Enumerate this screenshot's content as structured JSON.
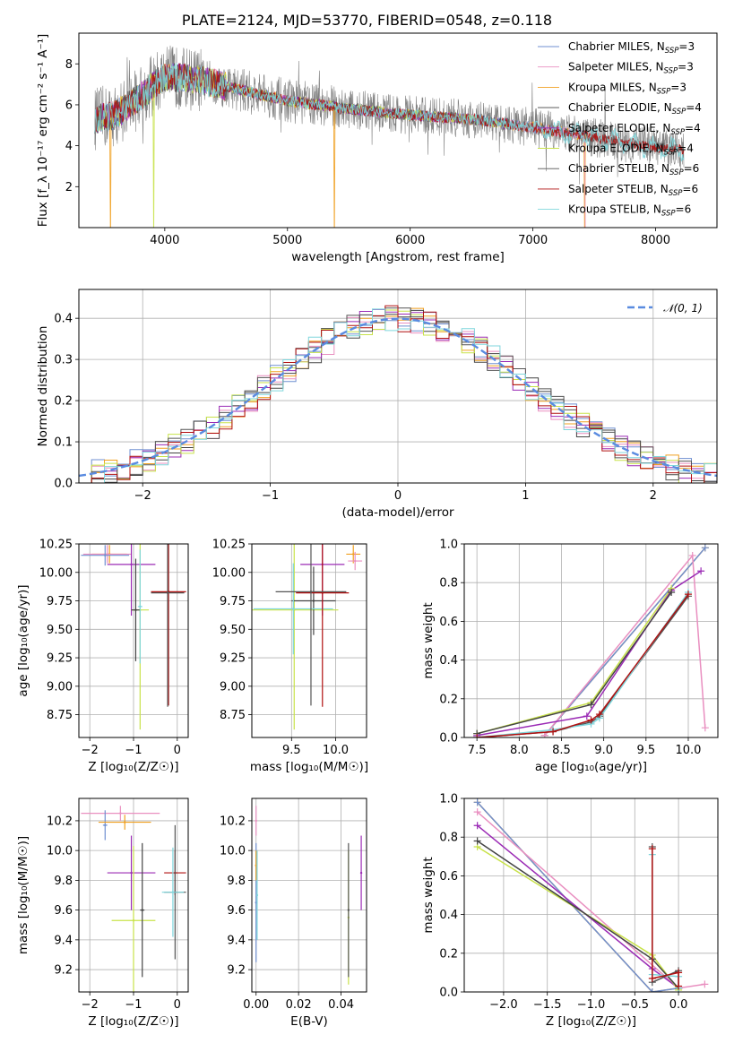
{
  "figure": {
    "title": "PLATE=2124, MJD=53770, FIBERID=0548, z=0.118"
  },
  "series_colors": {
    "Chabrier MILES": "#6f8fd0",
    "Salpeter MILES": "#e98fc0",
    "Kroupa MILES": "#f0a020",
    "Chabrier ELODIE": "#444444",
    "Salpeter ELODIE": "#9b2bb5",
    "Kroupa ELODIE": "#c8e24a",
    "Chabrier STELIB": "#555555",
    "Salpeter STELIB": "#b01010",
    "Kroupa STELIB": "#7fd6dc"
  },
  "chart_data": [
    {
      "id": "spectrum",
      "type": "line",
      "xlabel": "wavelength [Angstrom, rest frame]",
      "ylabel": "Flux [f_λ 10⁻¹⁷ erg cm⁻² s⁻¹ A⁻¹]",
      "xlim": [
        3300,
        8500
      ],
      "ylim": [
        0,
        9.5
      ],
      "xticks": [
        "4000",
        "5000",
        "6000",
        "7000",
        "8000"
      ],
      "yticks": [
        "2",
        "4",
        "6",
        "8"
      ],
      "legend_position": "top-right",
      "legend": [
        {
          "name": "Chabrier MILES",
          "sub": "SSP",
          "n": "3"
        },
        {
          "name": "Salpeter MILES",
          "sub": "SSP",
          "n": "3"
        },
        {
          "name": "Kroupa MILES",
          "sub": "SSP",
          "n": "3"
        },
        {
          "name": "Chabrier ELODIE",
          "sub": "SSP",
          "n": "4"
        },
        {
          "name": "Salpeter ELODIE",
          "sub": "SSP",
          "n": "4"
        },
        {
          "name": "Kroupa ELODIE",
          "sub": "SSP",
          "n": "4"
        },
        {
          "name": "Chabrier STELIB",
          "sub": "SSP",
          "n": "6"
        },
        {
          "name": "Salpeter STELIB",
          "sub": "SSP",
          "n": "6"
        },
        {
          "name": "Kroupa STELIB",
          "sub": "SSP",
          "n": "6"
        }
      ],
      "continuum_model": {
        "x": [
          3430,
          3600,
          3800,
          4000,
          4300,
          4700,
          5000,
          5500,
          6000,
          6500,
          7000,
          7500,
          8000,
          8230
        ],
        "y": [
          5.3,
          5.5,
          6.4,
          7.4,
          7.2,
          6.6,
          6.2,
          5.8,
          5.5,
          5.3,
          4.9,
          4.4,
          3.9,
          3.8
        ]
      },
      "data_noise_amplitude": 1.2
    },
    {
      "id": "residuals",
      "type": "step",
      "xlabel": "(data-model)/error",
      "ylabel": "Normed distribution",
      "xlim": [
        -2.5,
        2.5
      ],
      "ylim": [
        0,
        0.47
      ],
      "xticks": [
        "−2",
        "−1",
        "0",
        "1",
        "2"
      ],
      "yticks": [
        "0.0",
        "0.1",
        "0.2",
        "0.3",
        "0.4"
      ],
      "legend_position": "top-right",
      "legend_label": "𝒩(0, 1)",
      "bin_width": 0.1,
      "reference_curve": "normal(0,1)"
    },
    {
      "id": "age_vs_Z",
      "type": "errorbar",
      "xlabel": "Z [log₁₀(Z/Z☉)]",
      "ylabel": "age  [log₁₀(age/yr)]",
      "xlim": [
        -2.25,
        0.25
      ],
      "ylim": [
        8.55,
        10.25
      ],
      "xticks": [
        "−2",
        "−1",
        "0"
      ],
      "yticks": [
        "8.75",
        "9.00",
        "9.25",
        "9.50",
        "9.75",
        "10.00",
        "10.25"
      ],
      "points": [
        {
          "s": "Kroupa MILES",
          "x": -1.55,
          "xe": 0.4,
          "y": 10.16,
          "ye": 0.08
        },
        {
          "s": "Salpeter MILES",
          "x": -1.6,
          "xe": 0.55,
          "y": 10.16,
          "ye": 0.08
        },
        {
          "s": "Chabrier MILES",
          "x": -1.65,
          "xe": 0.55,
          "y": 10.15,
          "ye": 0.09
        },
        {
          "s": "Salpeter ELODIE",
          "x": -1.05,
          "xe": 0.55,
          "y": 10.07,
          "ye": 0.45
        },
        {
          "s": "Kroupa ELODIE",
          "x": -0.85,
          "xe": 0.2,
          "y": 9.67,
          "ye": 1.05
        },
        {
          "s": "Chabrier ELODIE",
          "x": -0.95,
          "xe": 0.1,
          "y": 9.67,
          "ye": 0.45
        },
        {
          "s": "Kroupa STELIB",
          "x": -0.85,
          "xe": 0.05,
          "y": 9.7,
          "ye": 0.5
        },
        {
          "s": "Salpeter STELIB",
          "x": -0.2,
          "xe": 0.4,
          "y": 9.83,
          "ye": 1.0
        },
        {
          "s": "Chabrier STELIB",
          "x": -0.22,
          "xe": 0.38,
          "y": 9.82,
          "ye": 1.0
        }
      ]
    },
    {
      "id": "age_vs_mass",
      "type": "errorbar",
      "xlabel": "mass [log₁₀(M/M☉)]",
      "ylabel": "",
      "xlim": [
        9.05,
        10.35
      ],
      "ylim": [
        8.55,
        10.25
      ],
      "xticks": [
        "9.5",
        "10.0"
      ],
      "yticks": [
        "8.75",
        "9.00",
        "9.25",
        "9.50",
        "9.75",
        "10.00",
        "10.25"
      ],
      "points": [
        {
          "s": "Kroupa MILES",
          "x": 10.2,
          "xe": 0.08,
          "y": 10.16,
          "ye": 0.08
        },
        {
          "s": "Salpeter MILES",
          "x": 10.22,
          "xe": 0.08,
          "y": 10.1,
          "ye": 0.08
        },
        {
          "s": "Salpeter ELODIE",
          "x": 9.85,
          "xe": 0.25,
          "y": 10.07,
          "ye": 0.45
        },
        {
          "s": "Kroupa ELODIE",
          "x": 9.53,
          "xe": 0.5,
          "y": 9.67,
          "ye": 1.05
        },
        {
          "s": "Chabrier ELODIE",
          "x": 9.75,
          "xe": 0.25,
          "y": 9.75,
          "ye": 0.3
        },
        {
          "s": "Kroupa STELIB",
          "x": 9.52,
          "xe": 0.45,
          "y": 9.68,
          "ye": 0.4
        },
        {
          "s": "Salpeter STELIB",
          "x": 9.85,
          "xe": 0.3,
          "y": 9.82,
          "ye": 1.0
        },
        {
          "s": "Chabrier STELIB",
          "x": 9.72,
          "xe": 0.4,
          "y": 9.83,
          "ye": 1.0
        }
      ]
    },
    {
      "id": "weight_vs_age",
      "type": "line",
      "xlabel": "age  [log₁₀(age/yr)]",
      "ylabel": "mass weight",
      "xlim": [
        7.35,
        10.35
      ],
      "ylim": [
        0,
        1.0
      ],
      "xticks": [
        "7.5",
        "8.0",
        "8.5",
        "9.0",
        "9.5",
        "10.0"
      ],
      "yticks": [
        "0.0",
        "0.2",
        "0.4",
        "0.6",
        "0.8",
        "1.0"
      ],
      "series": [
        {
          "s": "Kroupa MILES",
          "x": [
            8.3,
            10.2
          ],
          "y": [
            0.01,
            0.98
          ]
        },
        {
          "s": "Chabrier MILES",
          "x": [
            8.3,
            10.2
          ],
          "y": [
            0.01,
            0.98
          ]
        },
        {
          "s": "Salpeter MILES",
          "x": [
            8.3,
            10.05,
            10.2
          ],
          "y": [
            0.01,
            0.94,
            0.05
          ]
        },
        {
          "s": "Salpeter ELODIE",
          "x": [
            7.5,
            8.8,
            9.8,
            10.15
          ],
          "y": [
            0.01,
            0.11,
            0.76,
            0.86
          ]
        },
        {
          "s": "Kroupa ELODIE",
          "x": [
            7.5,
            8.85,
            9.8
          ],
          "y": [
            0.02,
            0.18,
            0.77
          ]
        },
        {
          "s": "Chabrier ELODIE",
          "x": [
            7.5,
            8.85,
            9.8
          ],
          "y": [
            0.02,
            0.17,
            0.75
          ]
        },
        {
          "s": "Chabrier STELIB",
          "x": [
            7.5,
            8.4,
            8.85,
            8.95,
            10.0
          ],
          "y": [
            0.0,
            0.03,
            0.08,
            0.11,
            0.73
          ]
        },
        {
          "s": "Kroupa STELIB",
          "x": [
            7.5,
            8.4,
            8.85,
            8.95,
            10.0
          ],
          "y": [
            0.0,
            0.04,
            0.07,
            0.1,
            0.75
          ]
        },
        {
          "s": "Salpeter STELIB",
          "x": [
            7.5,
            8.4,
            8.85,
            8.95,
            10.0
          ],
          "y": [
            0.0,
            0.03,
            0.09,
            0.12,
            0.74
          ]
        }
      ]
    },
    {
      "id": "mass_vs_Z",
      "type": "errorbar",
      "xlabel": "Z [log₁₀(Z/Z☉)]",
      "ylabel": "mass [log₁₀(M/M☉)]",
      "xlim": [
        -2.25,
        0.25
      ],
      "ylim": [
        9.05,
        10.35
      ],
      "xticks": [
        "−2",
        "−1",
        "0"
      ],
      "yticks": [
        "9.2",
        "9.4",
        "9.6",
        "9.8",
        "10.0",
        "10.2"
      ],
      "points": [
        {
          "s": "Salpeter MILES",
          "x": -1.3,
          "xe": 0.9,
          "y": 10.25,
          "ye": 0.05
        },
        {
          "s": "Chabrier MILES",
          "x": -1.65,
          "xe": 0.05,
          "y": 10.17,
          "ye": 0.1
        },
        {
          "s": "Kroupa MILES",
          "x": -1.2,
          "xe": 0.6,
          "y": 10.19,
          "ye": 0.05
        },
        {
          "s": "Salpeter ELODIE",
          "x": -1.05,
          "xe": 0.55,
          "y": 9.85,
          "ye": 0.25
        },
        {
          "s": "Kroupa ELODIE",
          "x": -1.0,
          "xe": 0.5,
          "y": 9.53,
          "ye": 0.5
        },
        {
          "s": "Chabrier ELODIE",
          "x": -0.8,
          "xe": 0.05,
          "y": 9.6,
          "ye": 0.45
        },
        {
          "s": "Salpeter STELIB",
          "x": -0.05,
          "xe": 0.25,
          "y": 9.85,
          "ye": 0.15
        },
        {
          "s": "Chabrier STELIB",
          "x": -0.05,
          "xe": 0.25,
          "y": 9.72,
          "ye": 0.45
        },
        {
          "s": "Kroupa STELIB",
          "x": -0.1,
          "xe": 0.25,
          "y": 9.72,
          "ye": 0.3
        }
      ]
    },
    {
      "id": "mass_vs_EBV",
      "type": "errorbar",
      "xlabel": "E(B-V)",
      "ylabel": "",
      "xlim": [
        -0.002,
        0.052
      ],
      "ylim": [
        9.05,
        10.35
      ],
      "xticks": [
        "0.00",
        "0.02",
        "0.04"
      ],
      "yticks": [
        "9.2",
        "9.4",
        "9.6",
        "9.8",
        "10.0",
        "10.2"
      ],
      "points": [
        {
          "s": "Salpeter MILES",
          "x": 0.0,
          "xe": 0.0,
          "y": 10.2,
          "ye": 0.1
        },
        {
          "s": "Chabrier MILES",
          "x": 0.0,
          "xe": 0.0,
          "y": 9.65,
          "ye": 0.4
        },
        {
          "s": "Kroupa MILES",
          "x": 0.0,
          "xe": 0.0,
          "y": 9.9,
          "ye": 0.1
        },
        {
          "s": "Salpeter ELODIE",
          "x": 0.0495,
          "xe": 0.0,
          "y": 9.85,
          "ye": 0.25
        },
        {
          "s": "Kroupa ELODIE",
          "x": 0.0435,
          "xe": 0.0,
          "y": 9.55,
          "ye": 0.45
        },
        {
          "s": "Chabrier STELIB",
          "x": 0.0435,
          "xe": 0.0,
          "y": 9.6,
          "ye": 0.45
        },
        {
          "s": "Kroupa STELIB",
          "x": 0.0005,
          "xe": 0.0,
          "y": 9.7,
          "ye": 0.3
        }
      ]
    },
    {
      "id": "weight_vs_Z",
      "type": "line",
      "xlabel": "Z [log₁₀(Z/Z☉)]",
      "ylabel": "mass weight",
      "xlim": [
        -2.45,
        0.45
      ],
      "ylim": [
        0,
        1.0
      ],
      "xticks": [
        "−2.0",
        "−1.5",
        "−1.0",
        "−0.5",
        "0.0"
      ],
      "yticks": [
        "0.0",
        "0.2",
        "0.4",
        "0.6",
        "0.8",
        "1.0"
      ],
      "series": [
        {
          "s": "Kroupa MILES",
          "x": [
            -2.3,
            -0.3,
            0.0
          ],
          "y": [
            0.98,
            0.0,
            0.02
          ]
        },
        {
          "s": "Chabrier MILES",
          "x": [
            -2.3,
            -0.3,
            0.0
          ],
          "y": [
            0.98,
            0.0,
            0.02
          ]
        },
        {
          "s": "Salpeter MILES",
          "x": [
            -2.3,
            0.0,
            0.3
          ],
          "y": [
            0.93,
            0.02,
            0.04
          ]
        },
        {
          "s": "Salpeter ELODIE",
          "x": [
            -2.3,
            -0.3,
            0.0
          ],
          "y": [
            0.86,
            0.12,
            0.02
          ]
        },
        {
          "s": "Kroupa ELODIE",
          "x": [
            -2.3,
            -0.3,
            0.0
          ],
          "y": [
            0.75,
            0.19,
            0.01
          ]
        },
        {
          "s": "Chabrier ELODIE",
          "x": [
            -2.3,
            -0.3,
            0.0
          ],
          "y": [
            0.78,
            0.17,
            0.02
          ]
        },
        {
          "s": "Chabrier STELIB",
          "x": [
            -0.3,
            -0.3,
            0.0,
            0.0
          ],
          "y": [
            0.75,
            0.05,
            0.11,
            0.02
          ]
        },
        {
          "s": "Kroupa STELIB",
          "x": [
            -0.3,
            -0.3,
            0.0,
            0.0
          ],
          "y": [
            0.71,
            0.09,
            0.08,
            0.02
          ]
        },
        {
          "s": "Salpeter STELIB",
          "x": [
            -0.3,
            -0.3,
            0.0,
            0.0
          ],
          "y": [
            0.74,
            0.07,
            0.1,
            0.03
          ]
        }
      ]
    }
  ]
}
